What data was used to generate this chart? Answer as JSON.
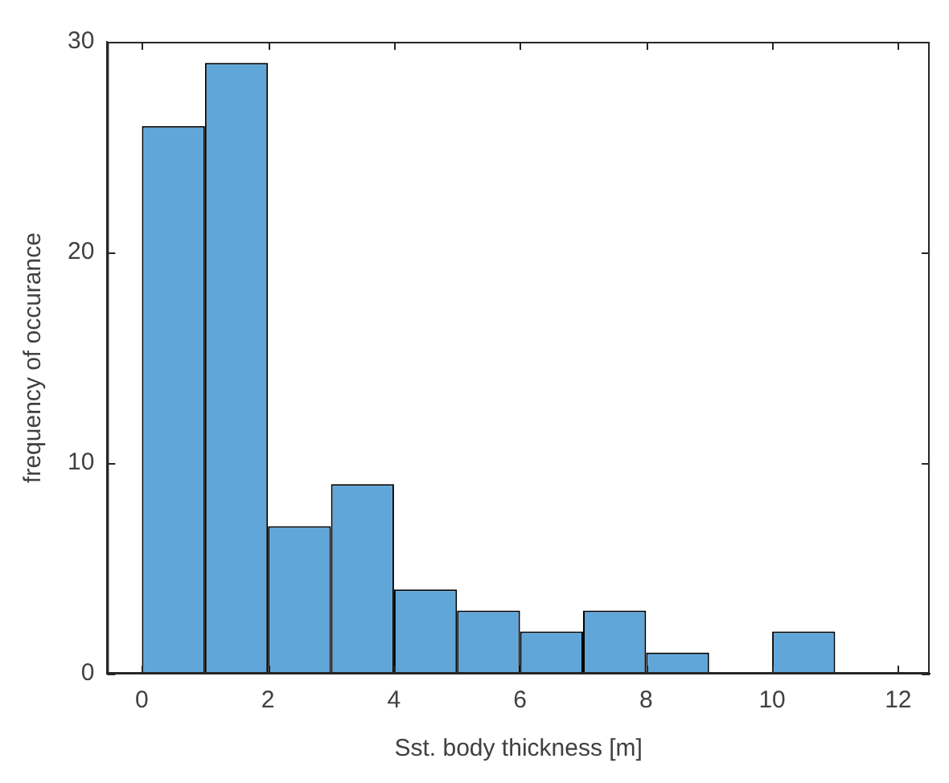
{
  "chart_data": {
    "type": "histogram",
    "xlabel": "Sst. body thickness [m]",
    "ylabel": "frequency of occurance",
    "bins": [
      0,
      1,
      2,
      3,
      4,
      5,
      6,
      7,
      8,
      9,
      10,
      11,
      12
    ],
    "values": [
      26,
      29,
      7,
      9,
      4,
      3,
      2,
      3,
      1,
      0,
      2,
      0
    ],
    "color": "#61a6d9",
    "xlim": [
      -0.55,
      12.5
    ],
    "xticks": [
      0,
      2,
      4,
      6,
      8,
      10,
      12
    ],
    "ylim": [
      0,
      30
    ],
    "yticks": [
      0,
      10,
      20,
      30
    ],
    "grid": false
  }
}
